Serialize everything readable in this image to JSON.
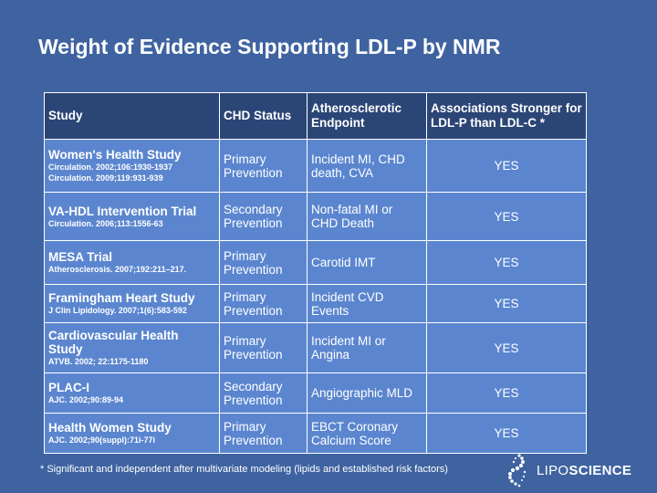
{
  "title": "Weight of Evidence Supporting LDL-P by NMR",
  "table": {
    "headers": [
      "Study",
      "CHD Status",
      "Atherosclerotic Endpoint",
      "Associations Stronger for LDL-P than LDL-C *"
    ],
    "rows": [
      {
        "study": "Women's Health Study",
        "citations": [
          "Circulation. 2002;106:1930-1937",
          "Circulation. 2009;119:931-939"
        ],
        "chd_status": "Primary Prevention",
        "endpoint": "Incident MI, CHD death, CVA",
        "association": "YES"
      },
      {
        "study": "VA-HDL Intervention Trial",
        "citations": [
          "Circulation. 2006;113:1556-63"
        ],
        "chd_status": "Secondary Prevention",
        "endpoint": "Non-fatal MI or CHD Death",
        "association": "YES"
      },
      {
        "study": "MESA Trial",
        "citations": [
          "Atherosclerosis. 2007;192:211–217."
        ],
        "chd_status": "Primary Prevention",
        "endpoint": "Carotid IMT",
        "association": "YES"
      },
      {
        "study": "Framingham Heart Study",
        "citations": [
          "J Clin Lipidology. 2007;1(6):583-592"
        ],
        "chd_status": "Primary Prevention",
        "endpoint": "Incident CVD Events",
        "association": "YES"
      },
      {
        "study": "Cardiovascular Health Study",
        "citations": [
          "ATVB. 2002; 22:1175-1180"
        ],
        "chd_status": "Primary Prevention",
        "endpoint": "Incident MI or Angina",
        "association": "YES"
      },
      {
        "study": "PLAC-I",
        "citations": [
          "AJC. 2002;90:89-94"
        ],
        "chd_status": "Secondary Prevention",
        "endpoint": "Angiographic MLD",
        "association": "YES"
      },
      {
        "study": "Health Women Study",
        "citations": [
          "AJC. 2002;90(suppl):71i-77i"
        ],
        "chd_status": "Primary Prevention",
        "endpoint": "EBCT Coronary Calcium Score",
        "association": "YES"
      }
    ]
  },
  "footnote": "* Significant and independent after multivariate modeling (lipids and established risk factors)",
  "logo": {
    "text_light": "LIPO",
    "text_bold": "SCIENCE",
    "icon": "dna-swirl-icon"
  },
  "colors": {
    "background": "#3f63a0",
    "header_cell": "#2b4676",
    "body_cell": "#5b86cf"
  }
}
